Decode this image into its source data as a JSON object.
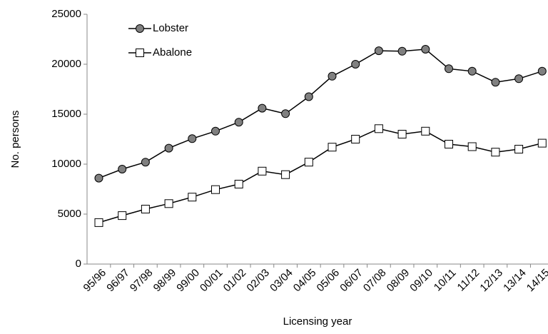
{
  "chart_data": {
    "type": "line",
    "xlabel": "Licensing year",
    "ylabel": "No. persons",
    "categories": [
      "95/96",
      "96/97",
      "97/98",
      "98/99",
      "99/00",
      "00/01",
      "01/02",
      "02/03",
      "03/04",
      "04/05",
      "05/06",
      "06/07",
      "07/08",
      "08/09",
      "09/10",
      "10/11",
      "11/12",
      "12/13",
      "13/14",
      "14/15"
    ],
    "series": [
      {
        "name": "Lobster",
        "color": "#000000",
        "marker": "circle",
        "marker_color": "#808080",
        "values": [
          8600,
          9500,
          10200,
          11600,
          12550,
          13300,
          14200,
          15600,
          15050,
          16750,
          18800,
          20000,
          21350,
          21300,
          21500,
          19550,
          19300,
          18200,
          18550,
          19300
        ]
      },
      {
        "name": "Abalone",
        "color": "#000000",
        "marker": "square",
        "marker_color": "#ffffff",
        "values": [
          4150,
          4850,
          5500,
          6050,
          6700,
          7450,
          8000,
          9300,
          8950,
          10200,
          11700,
          12500,
          13550,
          13000,
          13300,
          12000,
          11750,
          11200,
          11500,
          12100
        ]
      }
    ],
    "ylim": [
      0,
      25000
    ],
    "yticks": [
      0,
      5000,
      10000,
      15000,
      20000,
      25000
    ],
    "grid": false,
    "legend": "upper left"
  }
}
